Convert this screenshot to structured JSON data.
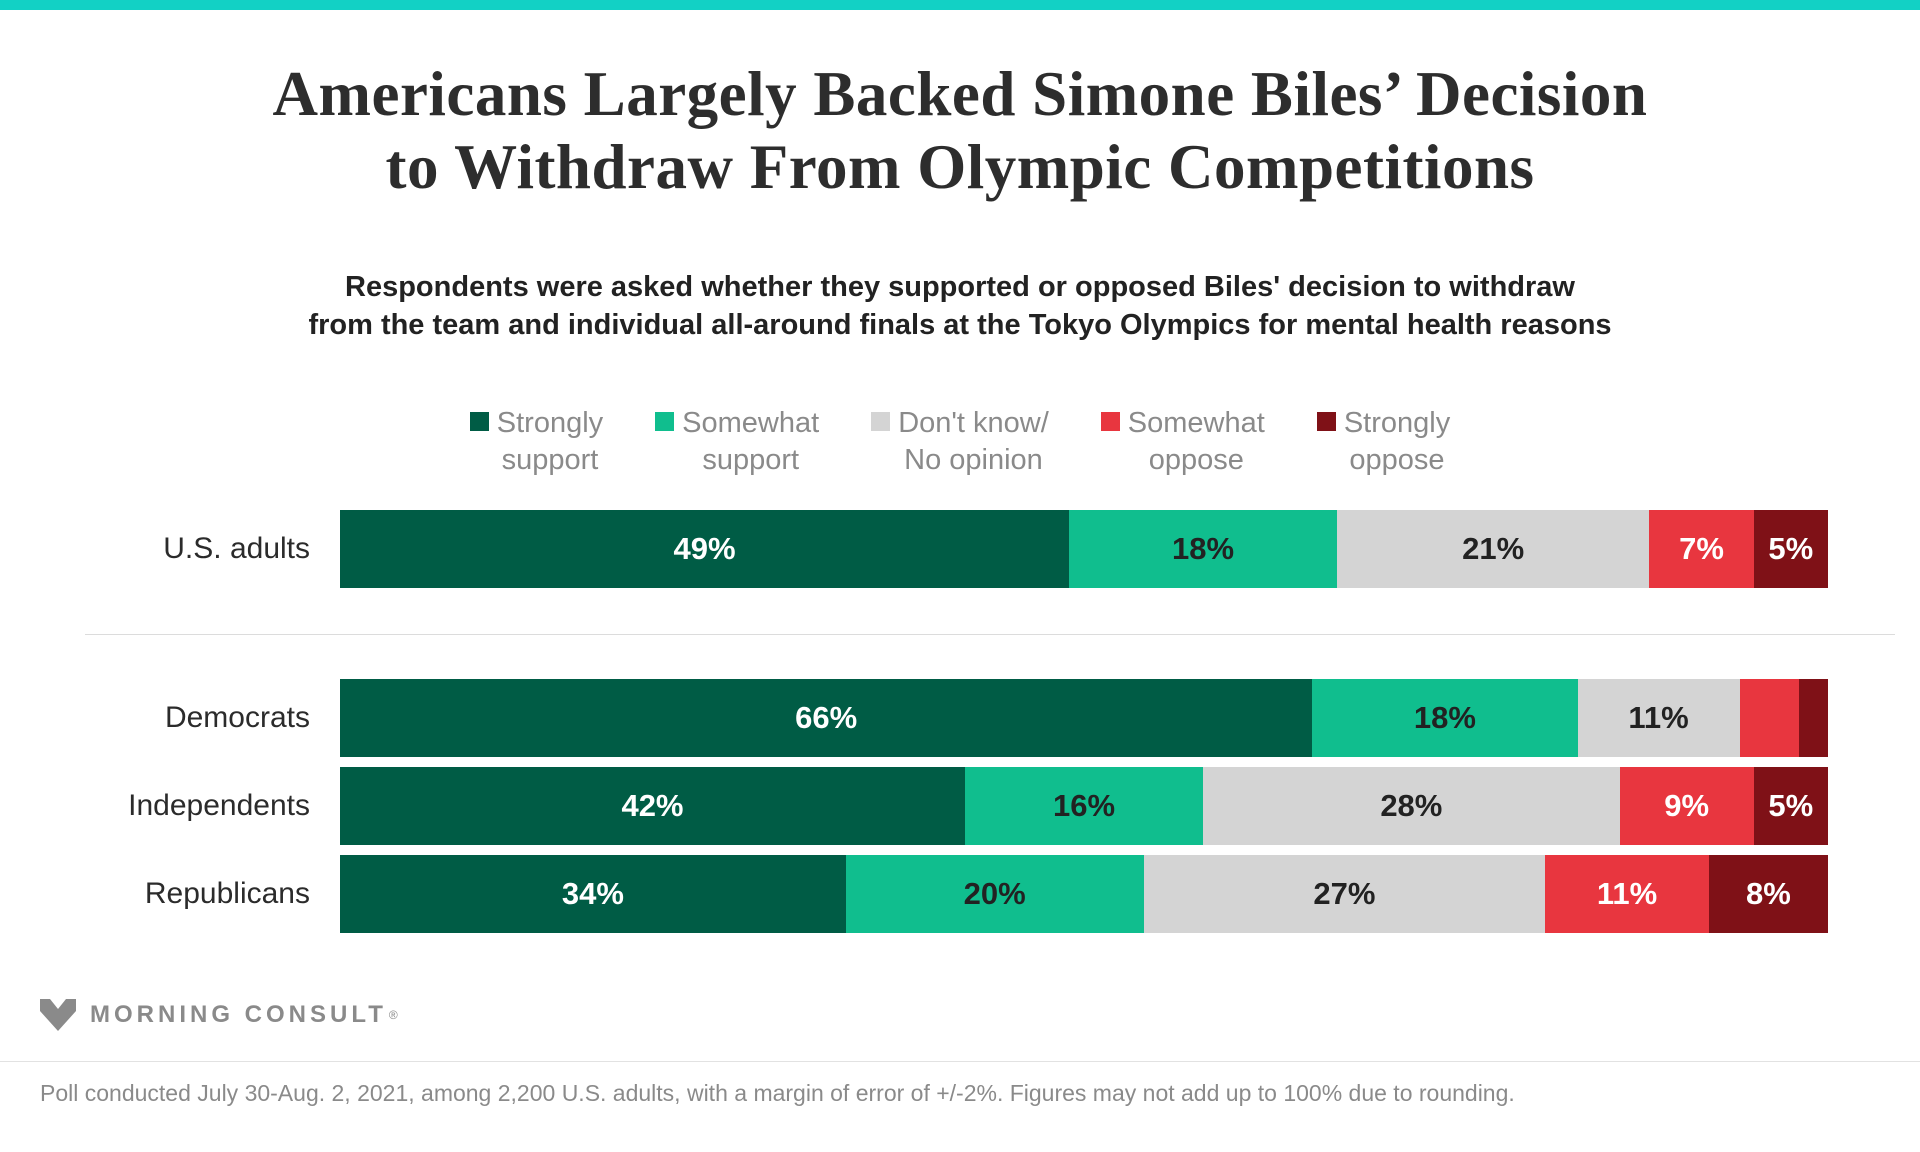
{
  "page": {
    "accent_bar_color": "#12d1c5"
  },
  "title": {
    "line1": "Americans Largely Backed Simone Biles’ Decision",
    "line2": "to Withdraw From Olympic Competitions"
  },
  "subtitle": {
    "line1": "Respondents were asked whether they supported or opposed Biles' decision to withdraw",
    "line2": "from the team and individual all-around finals at the Tokyo Olympics for mental health reasons"
  },
  "legend": [
    {
      "key": "strongly-support",
      "line1": "Strongly",
      "line2": "support",
      "color": "#005c45",
      "label_color": "#ffffff"
    },
    {
      "key": "somewhat-support",
      "line1": "Somewhat",
      "line2": "support",
      "color": "#10be8e",
      "label_color": "#222222"
    },
    {
      "key": "dont-know",
      "line1": "Don't know/",
      "line2": "No opinion",
      "color": "#d4d4d4",
      "label_color": "#222222"
    },
    {
      "key": "somewhat-oppose",
      "line1": "Somewhat",
      "line2": "oppose",
      "color": "#e8363f",
      "label_color": "#ffffff"
    },
    {
      "key": "strongly-oppose",
      "line1": "Strongly",
      "line2": "oppose",
      "color": "#7f1117",
      "label_color": "#ffffff"
    }
  ],
  "chart_data": {
    "type": "bar",
    "subtype": "horizontal-stacked",
    "xlim": [
      0,
      100
    ],
    "legend_position": "top",
    "categories": [
      "Strongly support",
      "Somewhat support",
      "Don't know/No opinion",
      "Somewhat oppose",
      "Strongly oppose"
    ],
    "groups": [
      {
        "rows": [
          {
            "label": "U.S. adults",
            "values": [
              49,
              18,
              21,
              7,
              5
            ],
            "shown_labels": [
              "49%",
              "18%",
              "21%",
              "7%",
              "5%"
            ]
          }
        ]
      },
      {
        "rows": [
          {
            "label": "Democrats",
            "values": [
              66,
              18,
              11,
              4,
              2
            ],
            "shown_labels": [
              "66%",
              "18%",
              "11%",
              "",
              ""
            ]
          },
          {
            "label": "Independents",
            "values": [
              42,
              16,
              28,
              9,
              5
            ],
            "shown_labels": [
              "42%",
              "16%",
              "28%",
              "9%",
              "5%"
            ]
          },
          {
            "label": "Republicans",
            "values": [
              34,
              20,
              27,
              11,
              8
            ],
            "shown_labels": [
              "34%",
              "20%",
              "27%",
              "11%",
              "8%"
            ]
          }
        ]
      }
    ]
  },
  "footer": {
    "logo_text": "MORNING CONSULT",
    "registered_mark": "®",
    "footnote": "Poll conducted July 30-Aug. 2, 2021, among 2,200 U.S. adults, with a margin of error of +/-2%. Figures may not add up to 100% due to rounding."
  }
}
